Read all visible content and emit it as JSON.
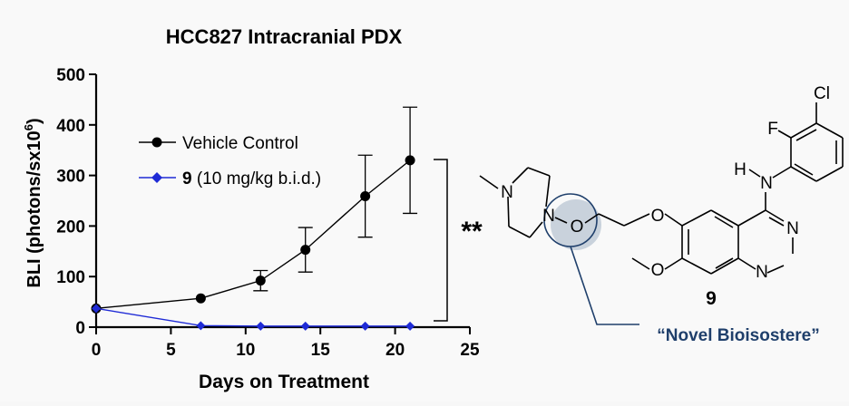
{
  "chart_data": {
    "type": "line",
    "title": "HCC827 Intracranial PDX",
    "xlabel": "Days on Treatment",
    "ylabel": "BLI (photons/sx10",
    "ylabel_sup": "6",
    "ylabel_close": ")",
    "xlim": [
      0,
      25
    ],
    "ylim": [
      0,
      500
    ],
    "xticks": [
      "0",
      "5",
      "10",
      "15",
      "20",
      "25"
    ],
    "yticks": [
      "0",
      "100",
      "200",
      "300",
      "400",
      "500"
    ],
    "grid": false,
    "legend_position": "top-left",
    "series": [
      {
        "name": "Vehicle Control",
        "color": "#000000",
        "marker": "circle",
        "x": [
          0,
          7,
          11,
          14,
          18,
          21
        ],
        "y": [
          37,
          57,
          92,
          153,
          259,
          330
        ],
        "err": [
          0,
          0,
          20,
          44,
          81,
          105
        ]
      },
      {
        "name_bold": "9",
        "name_rest": " (10 mg/kg b.i.d.)",
        "color": "#1f2bd6",
        "marker": "diamond",
        "x": [
          0,
          7,
          11,
          14,
          18,
          21
        ],
        "y": [
          37,
          3,
          2,
          2,
          2,
          2
        ],
        "err": [
          0,
          0,
          0,
          0,
          0,
          0
        ]
      }
    ],
    "annotations": {
      "significance": "**",
      "compound_label": "9",
      "callout": "“Novel Bioisostere”",
      "callout_color": "#1f3f6b"
    }
  },
  "molecule": {
    "atoms": {
      "Cl": "Cl",
      "F": "F",
      "H": "H",
      "N_aniline": "N",
      "N_pip1": "N",
      "N_pip2": "N",
      "O_link": "O",
      "O_ether1": "O",
      "O_ether2": "O",
      "N_q1": "N",
      "N_q2": "N"
    }
  }
}
